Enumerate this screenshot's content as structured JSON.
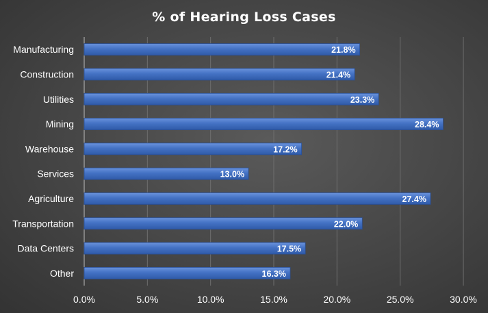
{
  "chart_data": {
    "type": "bar",
    "orientation": "horizontal",
    "title": "% of Hearing Loss Cases",
    "categories": [
      "Manufacturing",
      "Construction",
      "Utilities",
      "Mining",
      "Warehouse",
      "Services",
      "Agriculture",
      "Transportation",
      "Data Centers",
      "Other"
    ],
    "values": [
      21.8,
      21.4,
      23.3,
      28.4,
      17.2,
      13.0,
      27.4,
      22.0,
      17.5,
      16.3
    ],
    "data_labels": [
      "21.8%",
      "21.4%",
      "23.3%",
      "28.4%",
      "17.2%",
      "13.0%",
      "27.4%",
      "22.0%",
      "17.5%",
      "16.3%"
    ],
    "xticks": [
      "0.0%",
      "5.0%",
      "10.0%",
      "15.0%",
      "20.0%",
      "25.0%",
      "30.0%"
    ],
    "xlim": [
      0,
      30
    ],
    "xlabel": "",
    "ylabel": "",
    "grid": true,
    "legend": "none",
    "colors": {
      "bar": "#4472c4",
      "background": "#404040",
      "text": "#ffffff",
      "grid": "#6e6e6e"
    }
  }
}
